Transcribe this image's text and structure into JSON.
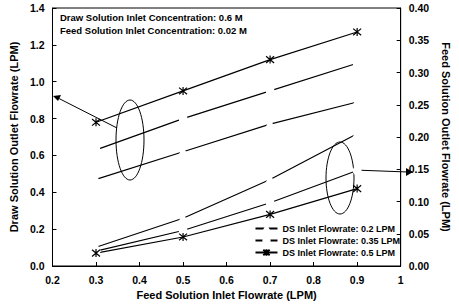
{
  "chart_data": {
    "type": "line",
    "annotations": [
      "Draw Solution Inlet Concentration: 0.6 M",
      "Feed Solution Inlet Concentration: 0.02 M"
    ],
    "xlabel": "Feed Solution Inlet Flowrate (LPM)",
    "ylabel": "Draw Solution Outlet Flowrate (LPM)",
    "y2label": "Feed Solution Outlet Flowrate (LPM)",
    "x": [
      0.3,
      0.5,
      0.7,
      0.9
    ],
    "series": [
      {
        "name": "DS Inlet Flowrate: 0.2 LPM",
        "marker": "triangle",
        "color": "#000000",
        "values": [
          0.47,
          0.62,
          0.77,
          0.89
        ]
      },
      {
        "name": "DS Inlet Flowrate: 0.35 LPM",
        "marker": "circle",
        "color": "#000000",
        "values": [
          0.63,
          0.8,
          0.95,
          1.1
        ]
      },
      {
        "name": "DS Inlet Flowrate: 0.5 LPM",
        "marker": "asterisk",
        "color": "#000000",
        "values": [
          0.78,
          0.95,
          1.12,
          1.27
        ]
      },
      {
        "name": "DS Inlet Flowrate: 0.2 LPM",
        "marker": "triangle",
        "color": "#000000",
        "axis": "y2",
        "values": [
          0.029,
          0.074,
          0.134,
          0.205
        ]
      },
      {
        "name": "DS Inlet Flowrate: 0.35 LPM",
        "marker": "circle",
        "color": "#000000",
        "axis": "y2",
        "values": [
          0.023,
          0.055,
          0.098,
          0.148
        ]
      },
      {
        "name": "DS Inlet Flowrate: 0.5 LPM",
        "marker": "asterisk",
        "color": "#000000",
        "axis": "y2",
        "values": [
          0.02,
          0.045,
          0.08,
          0.12
        ]
      }
    ],
    "xlim": [
      0.2,
      1
    ],
    "xticks": [
      0.2,
      0.3,
      0.4,
      0.5,
      0.6,
      0.7,
      0.8,
      0.9,
      1
    ],
    "ylim": [
      0,
      1.4
    ],
    "yticks": [
      {
        "value": 0,
        "label": "0.0"
      },
      0.2,
      0.4,
      0.6,
      0.8,
      {
        "value": 1,
        "label": "1.0"
      },
      1.2,
      1.4
    ],
    "y2lim": [
      0,
      0.4
    ],
    "y2ticks": [
      {
        "value": 0,
        "label": "0.00"
      },
      {
        "value": 0.05,
        "label": "0.05"
      },
      {
        "value": 0.1,
        "label": "0.10"
      },
      {
        "value": 0.15,
        "label": "0.15"
      },
      {
        "value": 0.2,
        "label": "0.20"
      },
      {
        "value": 0.25,
        "label": "0.25"
      },
      {
        "value": 0.3,
        "label": "0.30"
      },
      {
        "value": 0.35,
        "label": "0.35"
      },
      {
        "value": 0.4,
        "label": "0.40"
      }
    ],
    "grid": false,
    "legend": "lower right"
  }
}
